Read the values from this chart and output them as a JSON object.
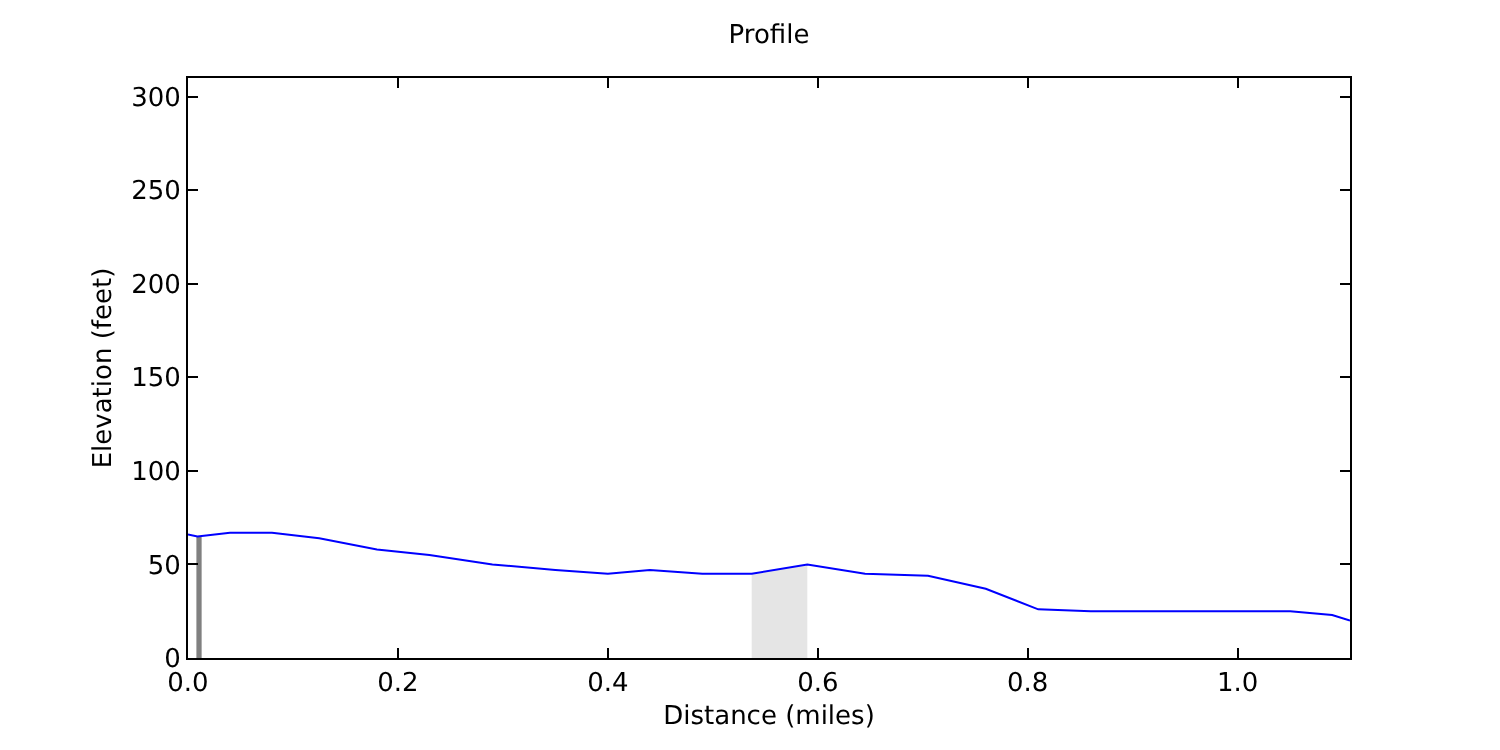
{
  "chart_data": {
    "type": "line",
    "title": "Profile",
    "xlabel": "Distance (miles)",
    "ylabel": "Elevation (feet)",
    "x": [
      0,
      0.009,
      0.04,
      0.08,
      0.125,
      0.18,
      0.23,
      0.29,
      0.35,
      0.4,
      0.44,
      0.49,
      0.537,
      0.59,
      0.645,
      0.705,
      0.76,
      0.81,
      0.86,
      0.95,
      1.05,
      1.09,
      1.107
    ],
    "series": [
      {
        "color": "#0000ff",
        "values": [
          66,
          65,
          67,
          67,
          64,
          58,
          55,
          50,
          47,
          45,
          47,
          45,
          45,
          50,
          45,
          44,
          37,
          26,
          25,
          25,
          25,
          23,
          20
        ]
      }
    ],
    "bands": [
      {
        "axis": "x",
        "from": 0.008,
        "to": 0.013,
        "color": "#808080"
      },
      {
        "axis": "x",
        "from": 0.537,
        "to": 0.59,
        "color": "#e5e5e5"
      }
    ],
    "xlim": [
      0,
      1.107
    ],
    "ylim": [
      0,
      310
    ],
    "xticks": [
      {
        "value": 0,
        "label": "0.0"
      },
      {
        "value": 0.2,
        "label": "0.2"
      },
      {
        "value": 0.4,
        "label": "0.4"
      },
      {
        "value": 0.6,
        "label": "0.6"
      },
      {
        "value": 0.8,
        "label": "0.8"
      },
      {
        "value": 1.0,
        "label": "1.0"
      }
    ],
    "yticks": [
      0,
      50,
      100,
      150,
      200,
      250,
      300
    ],
    "marker": "none",
    "line_style": "solid"
  }
}
